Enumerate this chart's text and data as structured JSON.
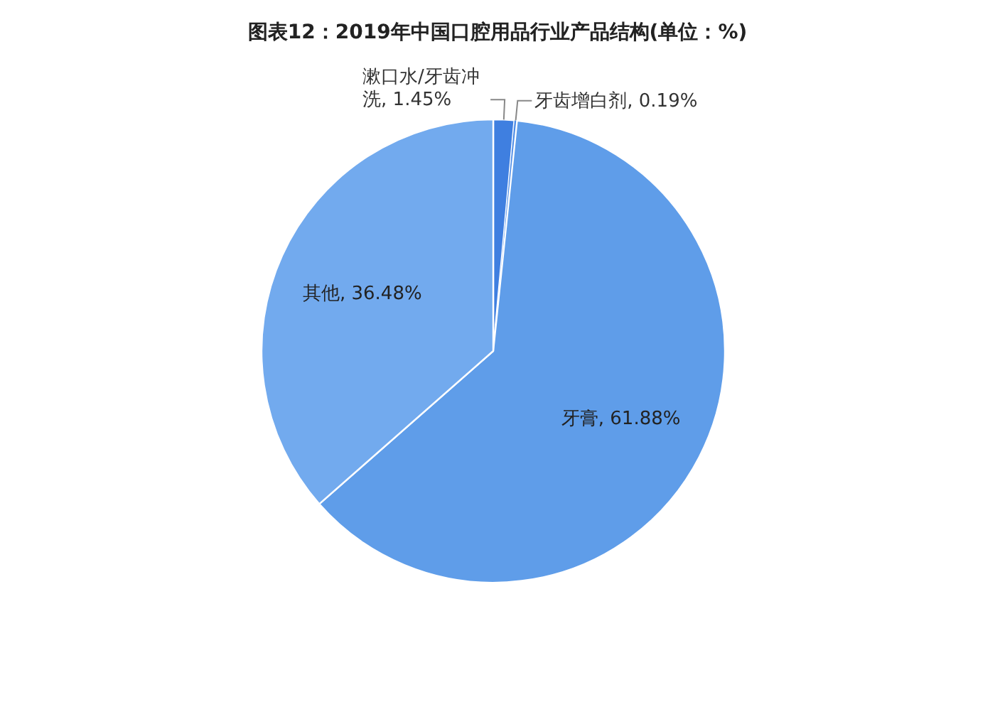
{
  "chart_data": {
    "type": "pie",
    "title": "图表12：2019年中国口腔用品行业产品结构(单位：%)",
    "categories": [
      "漱口水/牙齿冲洗",
      "牙齿增白剂",
      "牙膏",
      "其他"
    ],
    "values": [
      1.45,
      0.19,
      61.88,
      36.48
    ],
    "colors": [
      "#3f7fe0",
      "#4a8ae6",
      "#5f9de9",
      "#72aaee"
    ],
    "value_labels": [
      "1.45%",
      "0.19%",
      "61.88%",
      "36.48%"
    ]
  }
}
